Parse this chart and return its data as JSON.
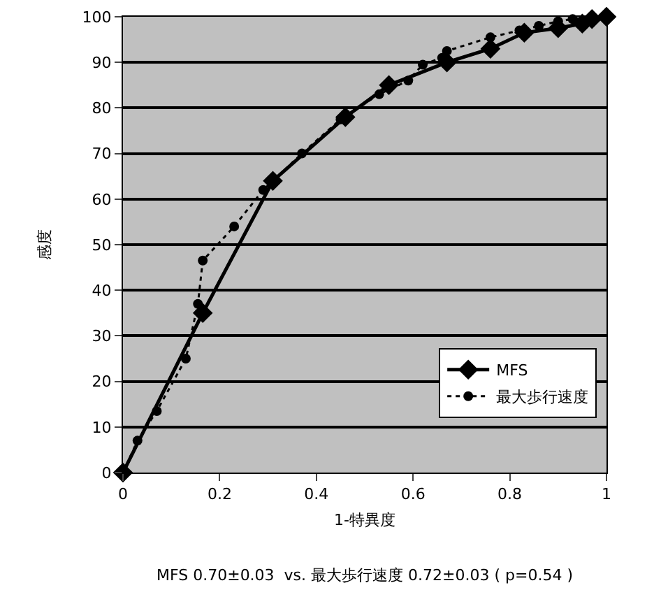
{
  "chart_data": {
    "type": "line",
    "xlabel": "1-特異度",
    "ylabel": "感度",
    "annotations": [
      "MFS 0.70±0.03  vs. 最大歩行速度 0.72±0.03 ( p=0.54 )"
    ],
    "xlim": [
      0,
      1
    ],
    "xticks": [
      0,
      0.2,
      0.4,
      0.6,
      0.8,
      1
    ],
    "ylim": [
      0,
      100
    ],
    "yticks": [
      0,
      10,
      20,
      30,
      40,
      50,
      60,
      70,
      80,
      90,
      100
    ],
    "grid": "y",
    "legend": "bottom right",
    "series": [
      {
        "name": "MFS",
        "color": "#000000",
        "marker": "diamond",
        "line_style": "solid",
        "x": [
          0,
          0.165,
          0.31,
          0.46,
          0.55,
          0.67,
          0.76,
          0.83,
          0.9,
          0.95,
          0.97,
          1
        ],
        "values": [
          0,
          35,
          64,
          78,
          85,
          90,
          93,
          96.5,
          97.5,
          98.5,
          99.5,
          100
        ]
      },
      {
        "name": "最大歩行速度",
        "color": "#000000",
        "marker": "circle",
        "line_style": "dotted",
        "x": [
          0,
          0.03,
          0.07,
          0.13,
          0.155,
          0.165,
          0.23,
          0.29,
          0.37,
          0.45,
          0.53,
          0.59,
          0.62,
          0.66,
          0.67,
          0.76,
          0.82,
          0.86,
          0.9,
          0.93,
          0.97,
          1
        ],
        "values": [
          0,
          7,
          13.5,
          25,
          37,
          46.5,
          54,
          62,
          70,
          77.5,
          83,
          86,
          89.5,
          91,
          92.5,
          95.5,
          97,
          98,
          99,
          99.5,
          100,
          100
        ]
      }
    ]
  }
}
